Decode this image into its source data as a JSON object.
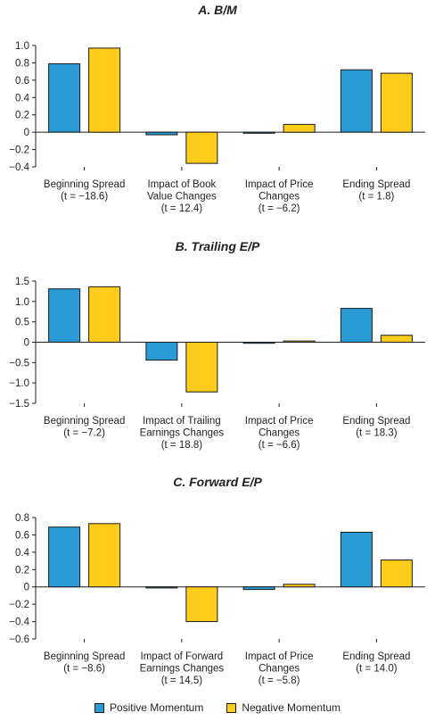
{
  "colors": {
    "positive": "#2b9bd5",
    "negative": "#fecd1b",
    "stroke": "#1a1a1a"
  },
  "legend": {
    "positive": "Positive Momentum",
    "negative": "Negative Momentum"
  },
  "chart_data": [
    {
      "type": "bar",
      "title": "A. B/M",
      "ylim": [
        -0.4,
        1.0
      ],
      "yticks": [
        -0.4,
        -0.2,
        0,
        0.2,
        0.4,
        0.6,
        0.8,
        1.0
      ],
      "ytick_labels": [
        "−0.4",
        "−0.2",
        "0",
        "0.2",
        "0.4",
        "0.6",
        "0.8",
        "1.0"
      ],
      "categories": [
        [
          "Beginning Spread",
          "(t = −18.6)"
        ],
        [
          "Impact of Book",
          "Value Changes",
          "(t = 12.4)"
        ],
        [
          "Impact of Price",
          "Changes",
          "(t = −6.2)"
        ],
        [
          "Ending Spread",
          "(t = 1.8)"
        ]
      ],
      "series": [
        {
          "name": "Positive Momentum",
          "values": [
            0.79,
            -0.03,
            -0.01,
            0.72
          ]
        },
        {
          "name": "Negative Momentum",
          "values": [
            0.97,
            -0.36,
            0.09,
            0.68
          ]
        }
      ]
    },
    {
      "type": "bar",
      "title": "B. Trailing E/P",
      "ylim": [
        -1.5,
        1.5
      ],
      "yticks": [
        -1.5,
        -1.0,
        -0.5,
        0,
        0.5,
        1.0,
        1.5
      ],
      "ytick_labels": [
        "−1.5",
        "−1.0",
        "−0.5",
        "0",
        "0.5",
        "1.0",
        "1.5"
      ],
      "categories": [
        [
          "Beginning Spread",
          "(t = −7.2)"
        ],
        [
          "Impact of Trailing",
          "Earnings Changes",
          "(t = 18.8)"
        ],
        [
          "Impact of Price",
          "Changes",
          "(t = −6.6)"
        ],
        [
          "Ending Spread",
          "(t = 18.3)"
        ]
      ],
      "series": [
        {
          "name": "Positive Momentum",
          "values": [
            1.31,
            -0.44,
            -0.02,
            0.83
          ]
        },
        {
          "name": "Negative Momentum",
          "values": [
            1.36,
            -1.22,
            0.03,
            0.17
          ]
        }
      ]
    },
    {
      "type": "bar",
      "title": "C. Forward E/P",
      "ylim": [
        -0.6,
        0.8
      ],
      "yticks": [
        -0.6,
        -0.4,
        -0.2,
        0,
        0.2,
        0.4,
        0.6,
        0.8
      ],
      "ytick_labels": [
        "−0.6",
        "−0.4",
        "−0.2",
        "0",
        "0.2",
        "0.4",
        "0.6",
        "0.8"
      ],
      "categories": [
        [
          "Beginning Spread",
          "(t = −8.6)"
        ],
        [
          "Impact of Forward",
          "Earnings Changes",
          "(t = 14.5)"
        ],
        [
          "Impact of Price",
          "Changes",
          "(t = −5.8)"
        ],
        [
          "Ending Spread",
          "(t = 14.0)"
        ]
      ],
      "series": [
        {
          "name": "Positive Momentum",
          "values": [
            0.69,
            -0.01,
            -0.03,
            0.63
          ]
        },
        {
          "name": "Negative Momentum",
          "values": [
            0.73,
            -0.4,
            0.03,
            0.31
          ]
        }
      ]
    }
  ]
}
